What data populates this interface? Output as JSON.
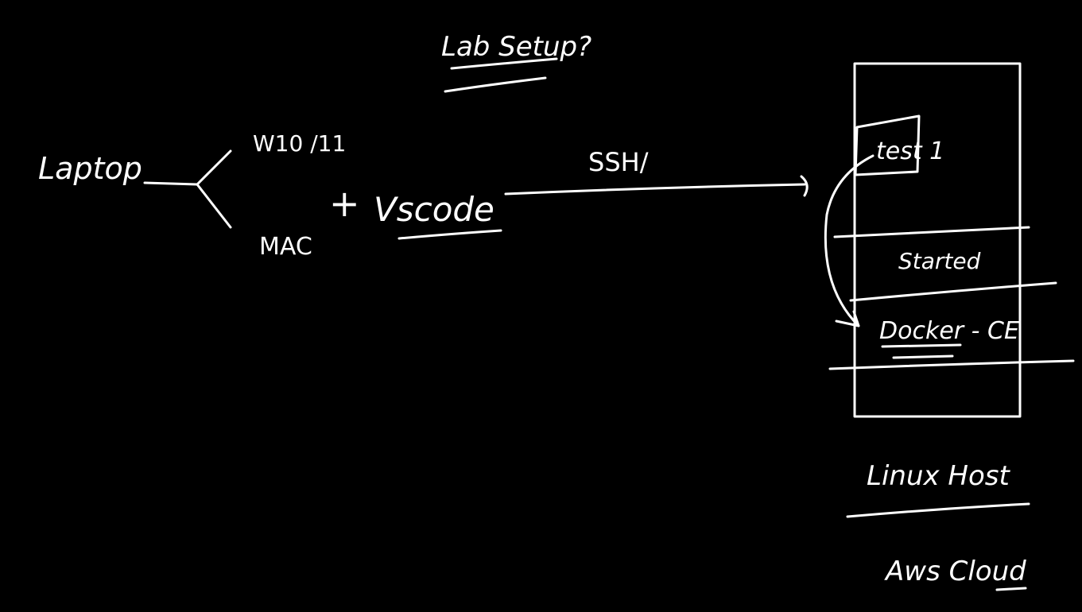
{
  "title": "Lab Setup?",
  "laptop": {
    "label": "Laptop",
    "os_options": [
      "W10 /11",
      "MAC"
    ]
  },
  "editor": {
    "plus": "+",
    "label": "Vscode"
  },
  "connection": {
    "label": "SSH/"
  },
  "server": {
    "rows": [
      "test 1",
      "Started",
      "Docker - CE"
    ]
  },
  "host": {
    "label": "Linux Host",
    "cloud": "Aws Cloud"
  },
  "colors": {
    "background": "#000000",
    "ink": "#ffffff"
  }
}
